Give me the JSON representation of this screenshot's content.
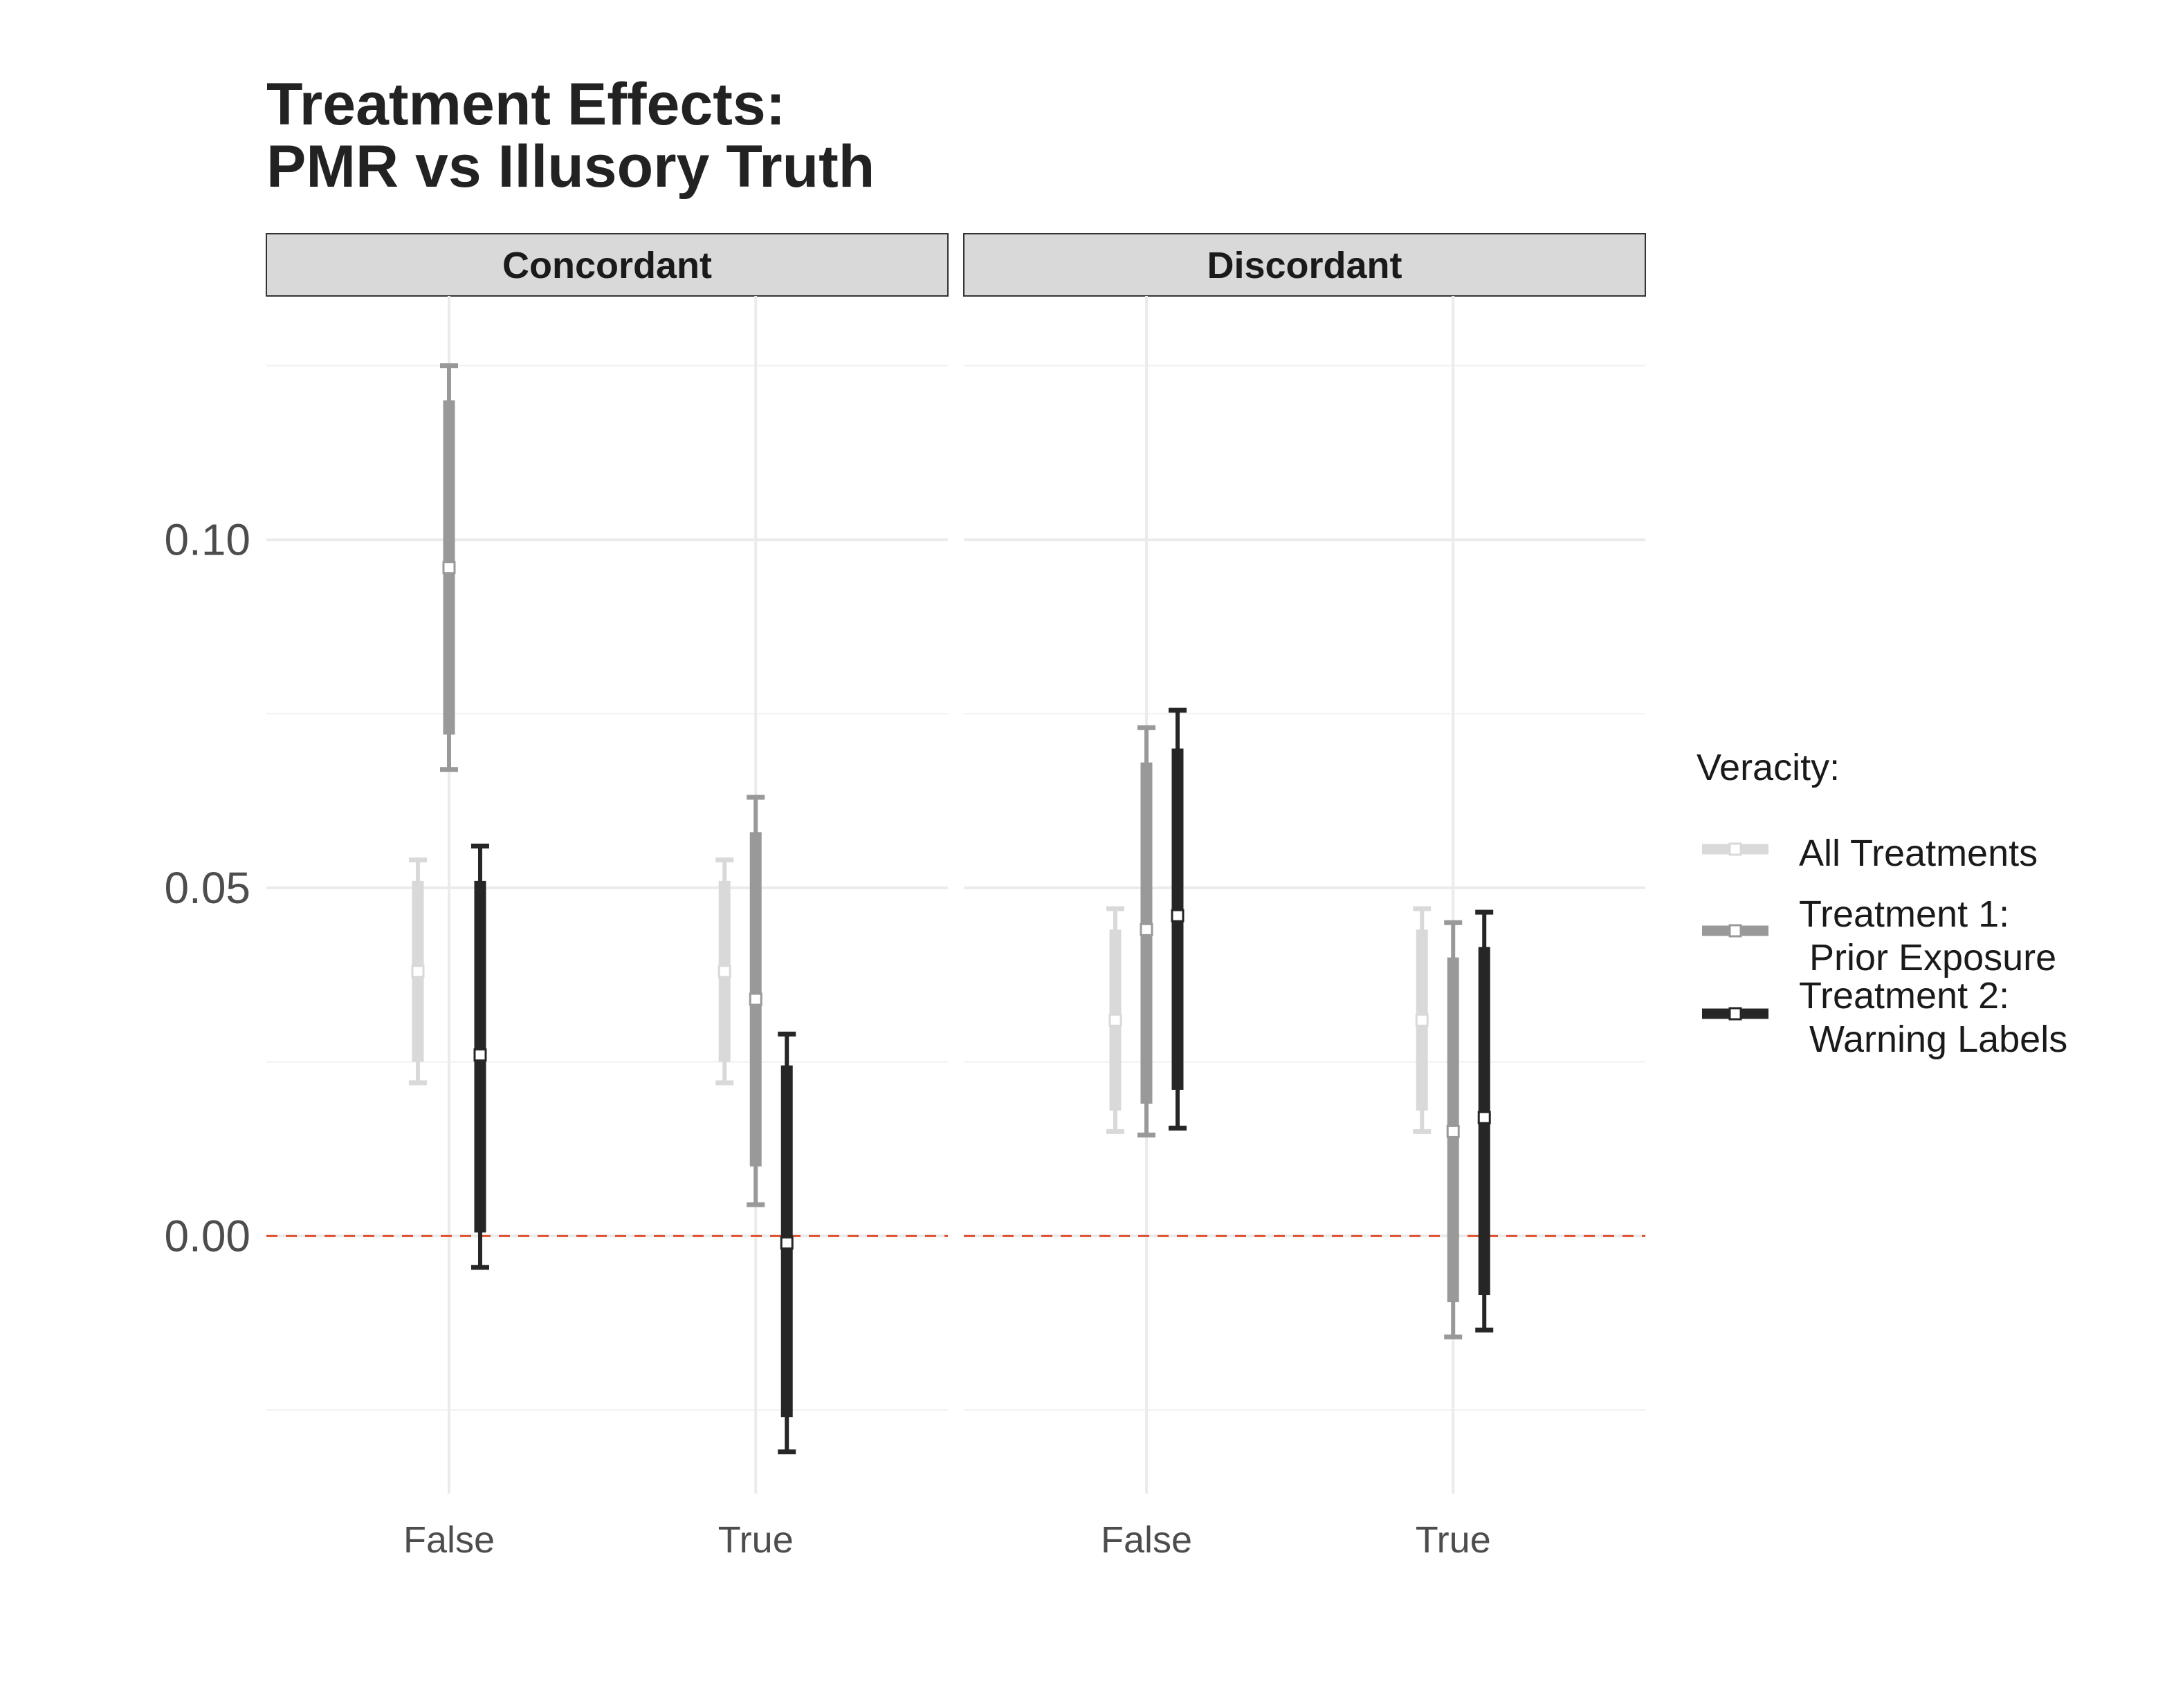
{
  "chart_data": {
    "type": "errorbar",
    "title_lines": [
      "Treatment Effects:",
      "PMR vs Illusory Truth"
    ],
    "xlabel": "",
    "ylabel": "",
    "ylim": [
      -0.037,
      0.135
    ],
    "yticks": [
      "0.10",
      "0.05",
      "0.00"
    ],
    "y_tick_values": [
      0.1,
      0.05,
      0.0
    ],
    "grid": true,
    "reference_line": {
      "y": 0.0,
      "style": "dashed",
      "color": "#e0502e"
    },
    "facets": [
      "Concordant",
      "Discordant"
    ],
    "categories": [
      "False",
      "True"
    ],
    "legend": {
      "title": "Veracity:",
      "position": "right",
      "entries": [
        {
          "lines": [
            "All Treatments"
          ]
        },
        {
          "lines": [
            "Treatment 1:",
            " Prior Exposure"
          ]
        },
        {
          "lines": [
            "Treatment 2:",
            " Warning Labels"
          ]
        }
      ]
    },
    "series": [
      {
        "name": "All Treatments",
        "color": "#d9d9d9",
        "points": [
          {
            "facet": "Concordant",
            "category": "False",
            "estimate": 0.038,
            "ci90": [
              0.025,
              0.051
            ],
            "ci95": [
              0.022,
              0.054
            ]
          },
          {
            "facet": "Concordant",
            "category": "True",
            "estimate": 0.038,
            "ci90": [
              0.025,
              0.051
            ],
            "ci95": [
              0.022,
              0.054
            ]
          },
          {
            "facet": "Discordant",
            "category": "False",
            "estimate": 0.031,
            "ci90": [
              0.018,
              0.044
            ],
            "ci95": [
              0.015,
              0.047
            ]
          },
          {
            "facet": "Discordant",
            "category": "True",
            "estimate": 0.031,
            "ci90": [
              0.018,
              0.044
            ],
            "ci95": [
              0.015,
              0.047
            ]
          }
        ]
      },
      {
        "name": "Treatment 1:\n Prior Exposure",
        "color": "#999999",
        "points": [
          {
            "facet": "Concordant",
            "category": "False",
            "estimate": 0.096,
            "ci90": [
              0.072,
              0.12
            ],
            "ci95": [
              0.067,
              0.125
            ]
          },
          {
            "facet": "Concordant",
            "category": "True",
            "estimate": 0.034,
            "ci90": [
              0.01,
              0.058
            ],
            "ci95": [
              0.0045,
              0.063
            ]
          },
          {
            "facet": "Discordant",
            "category": "False",
            "estimate": 0.044,
            "ci90": [
              0.019,
              0.068
            ],
            "ci95": [
              0.0145,
              0.073
            ]
          },
          {
            "facet": "Discordant",
            "category": "True",
            "estimate": 0.015,
            "ci90": [
              -0.0095,
              0.04
            ],
            "ci95": [
              -0.0145,
              0.045
            ]
          }
        ]
      },
      {
        "name": "Treatment 2:\n Warning Labels",
        "color": "#262626",
        "points": [
          {
            "facet": "Concordant",
            "category": "False",
            "estimate": 0.026,
            "ci90": [
              0.0005,
              0.051
            ],
            "ci95": [
              -0.0045,
              0.056
            ]
          },
          {
            "facet": "Concordant",
            "category": "True",
            "estimate": -0.001,
            "ci90": [
              -0.026,
              0.0245
            ],
            "ci95": [
              -0.031,
              0.029
            ]
          },
          {
            "facet": "Discordant",
            "category": "False",
            "estimate": 0.046,
            "ci90": [
              0.021,
              0.07
            ],
            "ci95": [
              0.0155,
              0.0755
            ]
          },
          {
            "facet": "Discordant",
            "category": "True",
            "estimate": 0.017,
            "ci90": [
              -0.0085,
              0.0415
            ],
            "ci95": [
              -0.0135,
              0.0465
            ]
          }
        ]
      }
    ]
  }
}
